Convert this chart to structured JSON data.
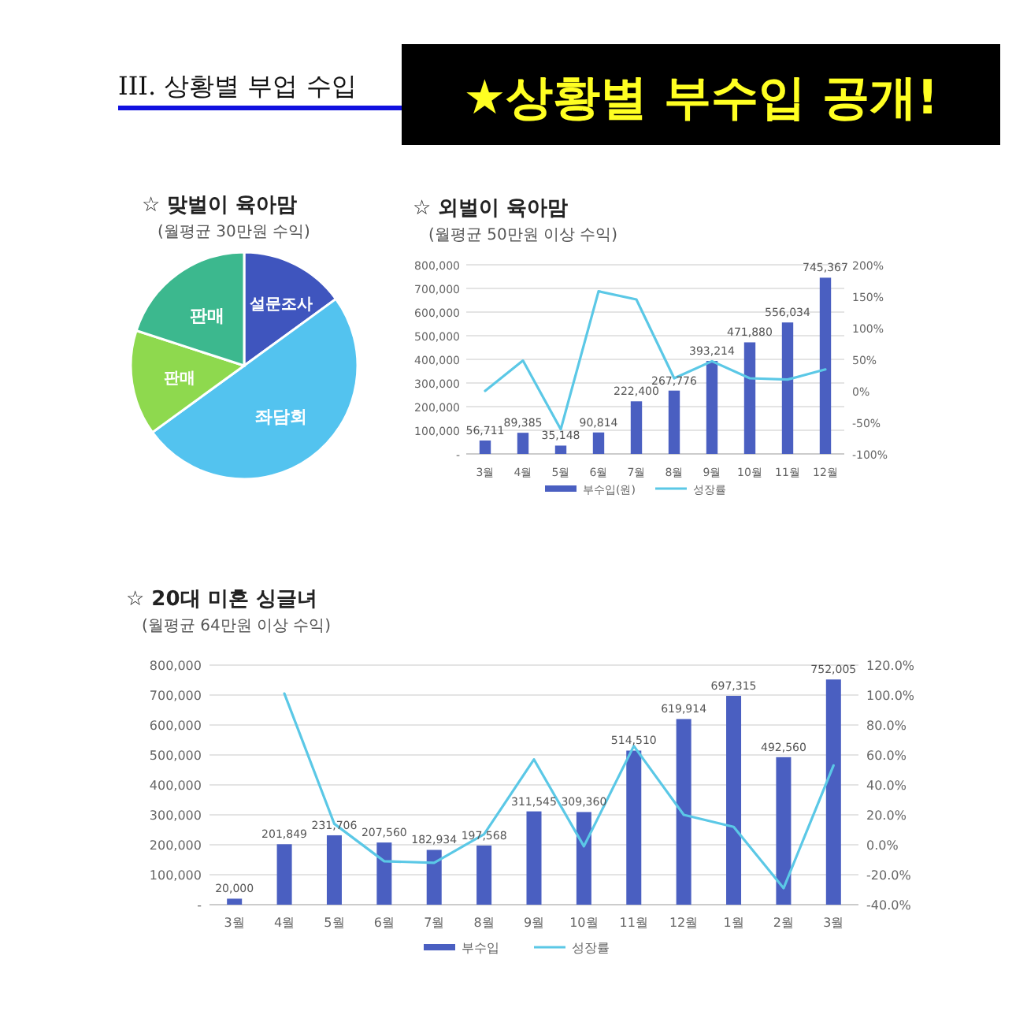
{
  "chart_data": [
    {
      "type": "other",
      "title": "III. 상황별 부업 수입",
      "annotations": [
        "★상황별 부수입 공개!"
      ]
    },
    {
      "type": "pie",
      "title": "☆ 맞벌이 육아맘",
      "subtitle": "(월평균 30만원 수익)",
      "categories": [
        "설문조사",
        "좌담회",
        "판매",
        "판매"
      ],
      "values": [
        15,
        50,
        15,
        20
      ],
      "colors": [
        "#3f55be",
        "#53c3ef",
        "#8ed94e",
        "#3cb88e"
      ]
    },
    {
      "type": "bar",
      "title": "☆ 외벌이 육아맘",
      "subtitle": "(월평균 50만원 이상 수익)",
      "categories": [
        "3월",
        "4월",
        "5월",
        "6월",
        "7월",
        "8월",
        "9월",
        "10월",
        "11월",
        "12월"
      ],
      "series": [
        {
          "name": "부수입(원)",
          "type": "bar",
          "color": "#4a5fc1",
          "values": [
            56711,
            89385,
            35148,
            90814,
            222400,
            267776,
            393214,
            471880,
            556034,
            745367
          ],
          "value_labels": [
            "56,711",
            "89,385",
            "35,148",
            "90,814",
            "222,400",
            "267,776",
            "393,214",
            "471,880",
            "556,034",
            "745,367"
          ]
        },
        {
          "name": "성장률",
          "type": "line",
          "axis": "y2",
          "color": "#5bc8e6",
          "values": [
            0,
            48,
            -61,
            158,
            145,
            20,
            47,
            20,
            18,
            34
          ]
        }
      ],
      "ylim": [
        0,
        800000
      ],
      "yticks": [
        {
          "value": 0,
          "label": "-"
        },
        {
          "value": 100000,
          "label": "100,000"
        },
        {
          "value": 200000,
          "label": "200,000"
        },
        {
          "value": 300000,
          "label": "300,000"
        },
        {
          "value": 400000,
          "label": "400,000"
        },
        {
          "value": 500000,
          "label": "500,000"
        },
        {
          "value": 600000,
          "label": "600,000"
        },
        {
          "value": 700000,
          "label": "700,000"
        },
        {
          "value": 800000,
          "label": "800,000"
        }
      ],
      "y2lim": [
        -100,
        200
      ],
      "y2ticks": [
        {
          "value": -100,
          "label": "-100%"
        },
        {
          "value": -50,
          "label": "-50%"
        },
        {
          "value": 0,
          "label": "0%"
        },
        {
          "value": 50,
          "label": "50%"
        },
        {
          "value": 100,
          "label": "100%"
        },
        {
          "value": 150,
          "label": "150%"
        },
        {
          "value": 200,
          "label": "200%"
        }
      ],
      "grid": "y",
      "legend": "bottom"
    },
    {
      "type": "bar",
      "title": "☆ 20대 미혼 싱글녀",
      "subtitle": "(월평균 64만원 이상 수익)",
      "categories": [
        "3월",
        "4월",
        "5월",
        "6월",
        "7월",
        "8월",
        "9월",
        "10월",
        "11월",
        "12월",
        "1월",
        "2월",
        "3월"
      ],
      "series": [
        {
          "name": "부수입",
          "type": "bar",
          "color": "#4a5fc1",
          "values": [
            20000,
            201849,
            231706,
            207560,
            182934,
            197568,
            311545,
            309360,
            514510,
            619914,
            697315,
            492560,
            752005
          ],
          "value_labels": [
            "20,000",
            "201,849",
            "231,706",
            "207,560",
            "182,934",
            "197,568",
            "311,545",
            "309,360",
            "514,510",
            "619,914",
            "697,315",
            "492,560",
            "752,005"
          ]
        },
        {
          "name": "성장률",
          "type": "line",
          "axis": "y2",
          "color": "#5bc8e6",
          "values": [
            null,
            101,
            14,
            -11,
            -12,
            7,
            57,
            -1,
            66,
            20,
            12,
            -29,
            53
          ]
        }
      ],
      "ylim": [
        0,
        800000
      ],
      "yticks": [
        {
          "value": 0,
          "label": "-"
        },
        {
          "value": 100000,
          "label": "100,000"
        },
        {
          "value": 200000,
          "label": "200,000"
        },
        {
          "value": 300000,
          "label": "300,000"
        },
        {
          "value": 400000,
          "label": "400,000"
        },
        {
          "value": 500000,
          "label": "500,000"
        },
        {
          "value": 600000,
          "label": "600,000"
        },
        {
          "value": 700000,
          "label": "700,000"
        },
        {
          "value": 800000,
          "label": "800,000"
        }
      ],
      "y2lim": [
        -40,
        120
      ],
      "y2ticks": [
        {
          "value": -40,
          "label": "-40.0%"
        },
        {
          "value": -20,
          "label": "-20.0%"
        },
        {
          "value": 0,
          "label": "0.0%"
        },
        {
          "value": 20,
          "label": "20.0%"
        },
        {
          "value": 40,
          "label": "40.0%"
        },
        {
          "value": 60,
          "label": "60.0%"
        },
        {
          "value": 80,
          "label": "80.0%"
        },
        {
          "value": 100,
          "label": "100.0%"
        },
        {
          "value": 120,
          "label": "120.0%"
        }
      ],
      "grid": "y",
      "legend": "bottom"
    }
  ]
}
